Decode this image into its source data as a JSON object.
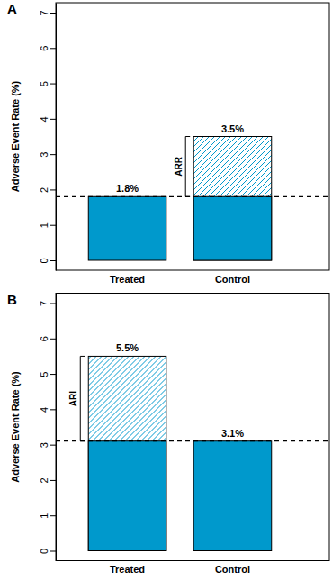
{
  "chart_data": [
    {
      "type": "bar",
      "title": "A",
      "y_label": "Adverse Event Rate (%)",
      "categories": [
        "Treated",
        "Control"
      ],
      "values": [
        1.8,
        3.5
      ],
      "value_labels": [
        "1.8%",
        "3.5%"
      ],
      "data_labels": true,
      "annotation": "ARR",
      "color": "#0099cc",
      "ylim": [
        -0.28,
        7.28
      ],
      "yticks": [
        0,
        1,
        2,
        3,
        4,
        5,
        6,
        7
      ]
    },
    {
      "type": "bar",
      "title": "B",
      "y_label": "Adverse Event Rate (%)",
      "categories": [
        "Treated",
        "Control"
      ],
      "values": [
        5.5,
        3.1
      ],
      "value_labels": [
        "5.5%",
        "3.1%"
      ],
      "data_labels": true,
      "annotation": "ARI",
      "color": "#0099cc",
      "ylim": [
        -0.28,
        7.28
      ],
      "yticks": [
        0,
        1,
        2,
        3,
        4,
        5,
        6,
        7
      ]
    }
  ]
}
